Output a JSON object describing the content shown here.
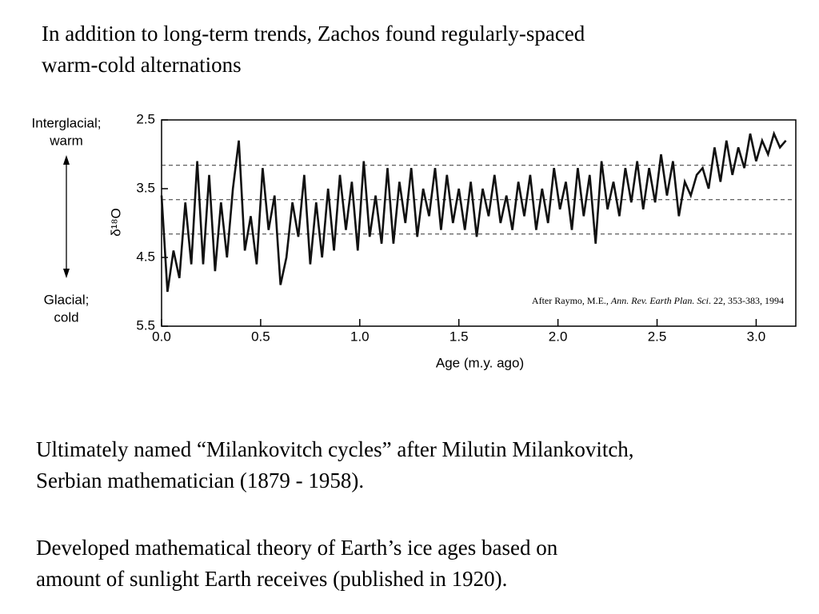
{
  "title_lines": [
    "In addition to long-term trends, Zachos found regularly-spaced",
    "warm-cold alternations"
  ],
  "chart_data": {
    "type": "line",
    "y_label": "δ¹⁸O",
    "x_label": "Age (m.y. ago)",
    "annotations": {
      "top": [
        "Interglacial;",
        "warm"
      ],
      "bottom": [
        "Glacial;",
        "cold"
      ]
    },
    "citation": [
      "After Raymo, M.E., ",
      "Ann. Rev. Earth Plan. Sci",
      ". 22, 353-383, 1994"
    ],
    "x": [
      0,
      0.03,
      0.06,
      0.09,
      0.12,
      0.15,
      0.18,
      0.21,
      0.24,
      0.27,
      0.3,
      0.33,
      0.36,
      0.39,
      0.42,
      0.45,
      0.48,
      0.51,
      0.54,
      0.57,
      0.6,
      0.63,
      0.66,
      0.69,
      0.72,
      0.75,
      0.78,
      0.81,
      0.84,
      0.87,
      0.9,
      0.93,
      0.96,
      0.99,
      1.02,
      1.05,
      1.08,
      1.11,
      1.14,
      1.17,
      1.2,
      1.23,
      1.26,
      1.29,
      1.32,
      1.35,
      1.38,
      1.41,
      1.44,
      1.47,
      1.5,
      1.53,
      1.56,
      1.59,
      1.62,
      1.65,
      1.68,
      1.71,
      1.74,
      1.77,
      1.8,
      1.83,
      1.86,
      1.89,
      1.92,
      1.95,
      1.98,
      2.01,
      2.04,
      2.07,
      2.1,
      2.13,
      2.16,
      2.19,
      2.22,
      2.25,
      2.28,
      2.31,
      2.34,
      2.37,
      2.4,
      2.43,
      2.46,
      2.49,
      2.52,
      2.55,
      2.58,
      2.61,
      2.64,
      2.67,
      2.7,
      2.73,
      2.76,
      2.79,
      2.82,
      2.85,
      2.88,
      2.91,
      2.94,
      2.97,
      3.0,
      3.03,
      3.06,
      3.09,
      3.12,
      3.15
    ],
    "series": [
      {
        "color": "#111111",
        "values": [
          3.6,
          5.0,
          4.4,
          4.8,
          3.7,
          4.6,
          3.1,
          4.6,
          3.3,
          4.7,
          3.7,
          4.5,
          3.5,
          2.8,
          4.4,
          3.9,
          4.6,
          3.2,
          4.1,
          3.6,
          4.9,
          4.5,
          3.7,
          4.2,
          3.3,
          4.6,
          3.7,
          4.5,
          3.5,
          4.4,
          3.3,
          4.1,
          3.4,
          4.4,
          3.1,
          4.2,
          3.6,
          4.3,
          3.2,
          4.3,
          3.4,
          4.0,
          3.2,
          4.2,
          3.5,
          3.9,
          3.2,
          4.1,
          3.3,
          4.0,
          3.5,
          4.1,
          3.4,
          4.2,
          3.5,
          3.9,
          3.3,
          4.0,
          3.6,
          4.1,
          3.4,
          3.9,
          3.3,
          4.1,
          3.5,
          4.0,
          3.2,
          3.8,
          3.4,
          4.1,
          3.2,
          3.9,
          3.3,
          4.3,
          3.1,
          3.8,
          3.4,
          3.9,
          3.2,
          3.7,
          3.1,
          3.8,
          3.2,
          3.7,
          3.0,
          3.6,
          3.1,
          3.9,
          3.4,
          3.6,
          3.3,
          3.2,
          3.5,
          2.9,
          3.4,
          2.8,
          3.3,
          2.9,
          3.2,
          2.7,
          3.1,
          2.8,
          3.0,
          2.7,
          2.9,
          2.8
        ]
      }
    ],
    "reference_lines": [
      3.16,
      3.66,
      4.16
    ],
    "xlim": [
      0,
      3.2
    ],
    "ylim": [
      5.5,
      2.5
    ],
    "xticks": [
      {
        "value": 0,
        "label": "0.0"
      },
      0.5,
      {
        "value": 1,
        "label": "1.0"
      },
      1.5,
      {
        "value": 2,
        "label": "2.0"
      },
      2.5,
      {
        "value": 3,
        "label": "3.0"
      }
    ],
    "yticks": [
      2.5,
      3.5,
      4.5,
      5.5
    ]
  },
  "body_text": [
    [
      "Ultimately named “Milankovitch cycles” after Milutin Milankovitch,",
      "Serbian mathematician (1879 - 1958)."
    ],
    [
      "Developed mathematical theory of Earth’s ice ages based on",
      "amount of sunlight Earth receives (published in 1920)."
    ]
  ]
}
